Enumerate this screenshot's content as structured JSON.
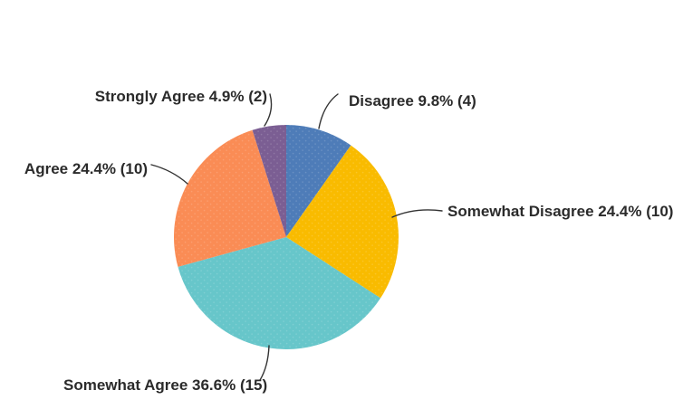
{
  "chart_data": {
    "type": "pie",
    "title": "",
    "categories": [
      "Disagree",
      "Somewhat Disagree",
      "Somewhat Agree",
      "Agree",
      "Strongly Agree"
    ],
    "values": [
      4,
      10,
      15,
      10,
      2
    ],
    "percent_labels": [
      "9.8%",
      "24.4%",
      "36.6%",
      "24.4%",
      "4.9%"
    ],
    "total_responses": 41,
    "series_colors": [
      "#4E7CB8",
      "#F9BB00",
      "#67C6CA",
      "#FA8C55",
      "#7B5E93"
    ],
    "label_format": "{category} {percent} ({count})",
    "start_angle_deg": 0,
    "direction": "clockwise",
    "legend_position": "none",
    "labels_shown_as": "callouts-with-leader-lines",
    "leader_line_color": "#333333",
    "label_text_color": "#2B2B2B",
    "background_color": "#FFFFFF"
  }
}
